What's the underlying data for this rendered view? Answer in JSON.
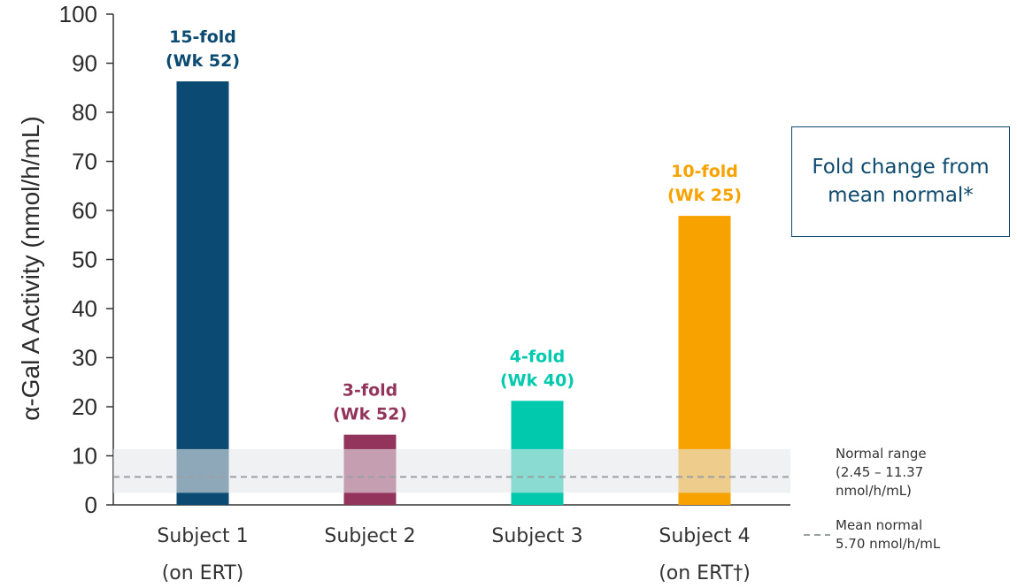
{
  "chart_data": {
    "type": "bar",
    "ylabel": "α-Gal A Activity (nmol/h/mL)",
    "ylim": [
      0,
      100
    ],
    "yticks": [
      0,
      10,
      20,
      30,
      40,
      50,
      60,
      70,
      80,
      90,
      100
    ],
    "categories": [
      {
        "line1": "Subject 1",
        "line2": "(on ERT)"
      },
      {
        "line1": "Subject 2",
        "line2": ""
      },
      {
        "line1": "Subject 3",
        "line2": ""
      },
      {
        "line1": "Subject 4",
        "line2": "(on ERT†)"
      }
    ],
    "values": [
      86.3,
      14.3,
      21.2,
      58.9
    ],
    "colors": [
      "#0b4a72",
      "#93345c",
      "#00c9ae",
      "#f8a200"
    ],
    "bar_labels": [
      {
        "line1": "15-fold",
        "line2": "(Wk 52)"
      },
      {
        "line1": "3-fold",
        "line2": "(Wk 52)"
      },
      {
        "line1": "4-fold",
        "line2": "(Wk 40)"
      },
      {
        "line1": "10-fold",
        "line2": "(Wk 25)"
      }
    ],
    "normal_range": {
      "low": 2.45,
      "high": 11.37,
      "mean": 5.7
    },
    "normal_range_label": [
      "Normal range",
      "(2.45 – 11.37",
      "nmol/h/mL)"
    ],
    "mean_label": [
      "Mean normal",
      "5.70 nmol/h/mL"
    ],
    "legend_box": [
      "Fold change from",
      "mean normal*"
    ]
  }
}
